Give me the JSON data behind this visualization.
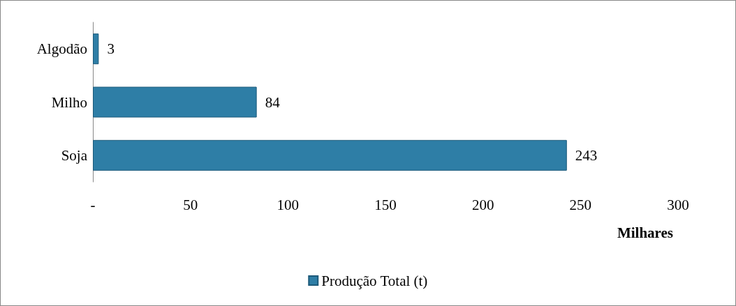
{
  "chart_data": {
    "type": "bar",
    "orientation": "horizontal",
    "categories": [
      "Algodão",
      "Milho",
      "Soja"
    ],
    "series": [
      {
        "name": "Produção Total (t)",
        "color": "#2e7ea6",
        "values": [
          3,
          84,
          243
        ]
      }
    ],
    "xlim": [
      0,
      300
    ],
    "xticks": [
      {
        "value": 0,
        "label": "-"
      },
      50,
      100,
      150,
      200,
      250,
      300
    ],
    "xlabel": "Milhares",
    "data_labels": true,
    "grid": false,
    "legend": "bottom"
  }
}
